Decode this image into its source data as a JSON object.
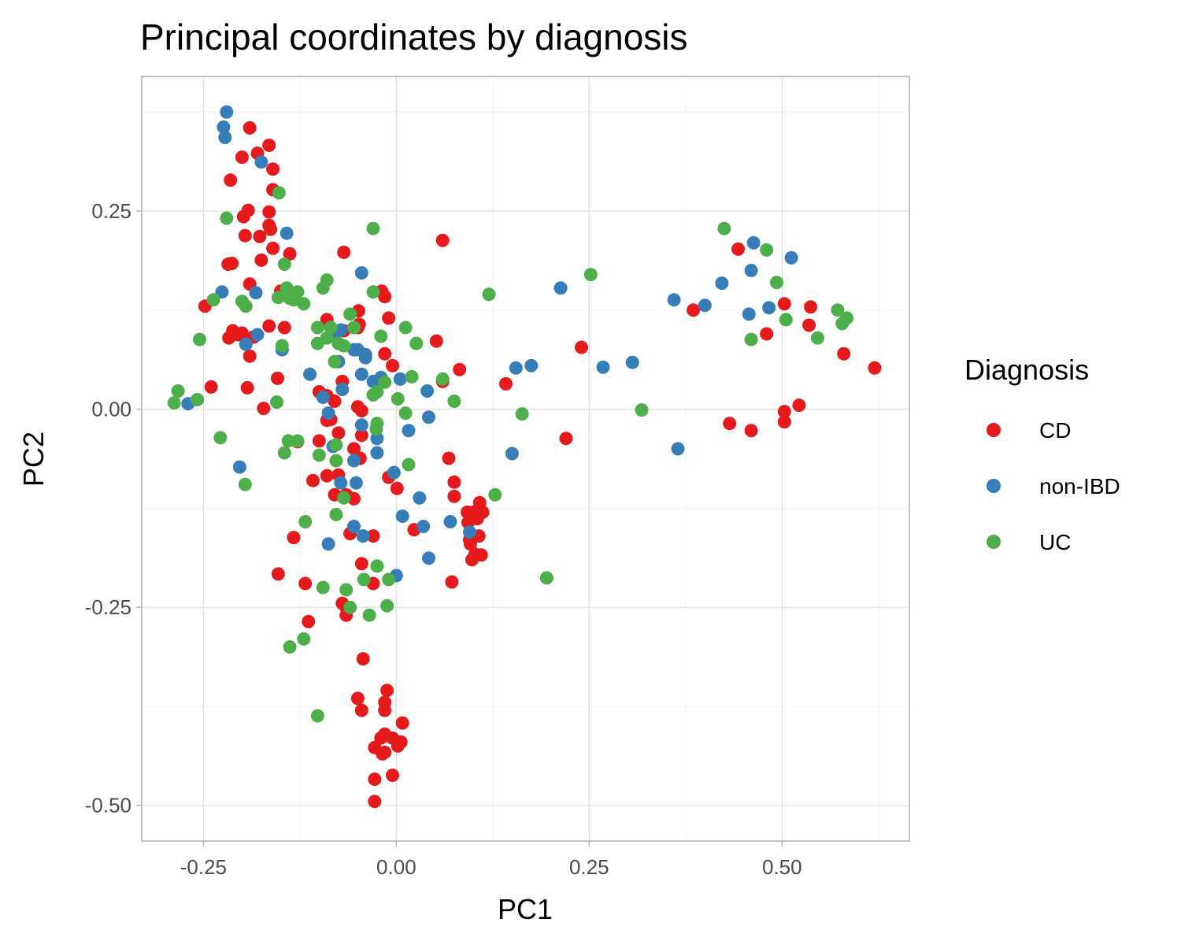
{
  "chart_data": {
    "type": "scatter",
    "title": "Principal coordinates by diagnosis",
    "xlabel": "PC1",
    "ylabel": "PC2",
    "xlim": [
      -0.33,
      0.665
    ],
    "ylim": [
      -0.545,
      0.42
    ],
    "x_ticks": [
      -0.25,
      0.0,
      0.25,
      0.5
    ],
    "x_tick_labels": [
      "-0.25",
      "0.00",
      "0.25",
      "0.50"
    ],
    "y_ticks": [
      0.25,
      0.0,
      -0.25,
      -0.5
    ],
    "y_tick_labels": [
      "0.25",
      "0.00",
      "-0.25",
      "-0.50"
    ],
    "grid": true,
    "legend": {
      "title": "Diagnosis",
      "position": "right"
    },
    "series": [
      {
        "name": "CD",
        "color": "#e41a1c",
        "points": [
          [
            -0.19,
            0.355
          ],
          [
            -0.2,
            0.318
          ],
          [
            -0.18,
            0.323
          ],
          [
            -0.165,
            0.333
          ],
          [
            -0.16,
            0.303
          ],
          [
            -0.215,
            0.289
          ],
          [
            -0.16,
            0.277
          ],
          [
            -0.198,
            0.243
          ],
          [
            -0.192,
            0.251
          ],
          [
            -0.165,
            0.249
          ],
          [
            -0.165,
            0.232
          ],
          [
            -0.163,
            0.227
          ],
          [
            -0.196,
            0.219
          ],
          [
            -0.177,
            0.218
          ],
          [
            -0.16,
            0.203
          ],
          [
            -0.138,
            0.196
          ],
          [
            -0.213,
            0.184
          ],
          [
            -0.218,
            0.183
          ],
          [
            -0.175,
            0.188
          ],
          [
            -0.19,
            0.158
          ],
          [
            -0.15,
            0.149
          ],
          [
            -0.248,
            0.13
          ],
          [
            -0.145,
            0.103
          ],
          [
            -0.165,
            0.105
          ],
          [
            -0.212,
            0.099
          ],
          [
            -0.205,
            0.094
          ],
          [
            -0.2,
            0.096
          ],
          [
            -0.185,
            0.091
          ],
          [
            -0.217,
            0.09
          ],
          [
            -0.19,
            0.067
          ],
          [
            -0.154,
            0.039
          ],
          [
            -0.24,
            0.028
          ],
          [
            -0.193,
            0.027
          ],
          [
            -0.172,
            0.001
          ],
          [
            -0.128,
            -0.041
          ],
          [
            -0.108,
            -0.09
          ],
          [
            -0.133,
            -0.162
          ],
          [
            -0.153,
            -0.208
          ],
          [
            -0.118,
            -0.22
          ],
          [
            -0.114,
            -0.268
          ],
          [
            -0.068,
            0.198
          ],
          [
            -0.049,
            0.124
          ],
          [
            -0.019,
            0.149
          ],
          [
            -0.015,
            0.142
          ],
          [
            -0.05,
            0.103
          ],
          [
            -0.048,
            0.107
          ],
          [
            -0.09,
            0.113
          ],
          [
            -0.068,
            0.099
          ],
          [
            -0.01,
            0.115
          ],
          [
            -0.015,
            0.07
          ],
          [
            -0.005,
            0.055
          ],
          [
            -0.07,
            0.035
          ],
          [
            -0.1,
            0.022
          ],
          [
            -0.09,
            0.017
          ],
          [
            -0.08,
            0.01
          ],
          [
            -0.05,
            0.003
          ],
          [
            -0.045,
            -0.002
          ],
          [
            -0.09,
            -0.014
          ],
          [
            -0.085,
            -0.013
          ],
          [
            -0.075,
            -0.03
          ],
          [
            -0.045,
            -0.033
          ],
          [
            -0.055,
            -0.05
          ],
          [
            -0.1,
            -0.04
          ],
          [
            -0.047,
            -0.062
          ],
          [
            -0.09,
            -0.084
          ],
          [
            -0.075,
            -0.083
          ],
          [
            -0.08,
            -0.108
          ],
          [
            -0.065,
            -0.108
          ],
          [
            -0.055,
            -0.113
          ],
          [
            -0.06,
            -0.157
          ],
          [
            -0.03,
            -0.16
          ],
          [
            -0.01,
            -0.086
          ],
          [
            0.001,
            -0.1
          ],
          [
            0.023,
            -0.152
          ],
          [
            -0.045,
            -0.195
          ],
          [
            -0.03,
            -0.22
          ],
          [
            -0.07,
            -0.245
          ],
          [
            -0.065,
            -0.25
          ],
          [
            -0.065,
            -0.26
          ],
          [
            -0.043,
            -0.315
          ],
          [
            -0.05,
            -0.365
          ],
          [
            -0.045,
            -0.38
          ],
          [
            -0.015,
            -0.37
          ],
          [
            -0.012,
            -0.355
          ],
          [
            -0.015,
            -0.38
          ],
          [
            0.008,
            -0.396
          ],
          [
            -0.015,
            -0.41
          ],
          [
            -0.02,
            -0.415
          ],
          [
            -0.028,
            -0.427
          ],
          [
            -0.015,
            -0.433
          ],
          [
            -0.005,
            -0.415
          ],
          [
            0.002,
            -0.425
          ],
          [
            0.006,
            -0.42
          ],
          [
            -0.018,
            -0.435
          ],
          [
            -0.028,
            -0.467
          ],
          [
            -0.005,
            -0.462
          ],
          [
            -0.028,
            -0.495
          ],
          [
            0.052,
            0.086
          ],
          [
            0.06,
            0.035
          ],
          [
            0.082,
            0.05
          ],
          [
            0.068,
            -0.062
          ],
          [
            0.075,
            -0.092
          ],
          [
            0.075,
            -0.11
          ],
          [
            0.072,
            -0.218
          ],
          [
            0.06,
            0.213
          ],
          [
            0.142,
            0.032
          ],
          [
            0.092,
            -0.13
          ],
          [
            0.1,
            -0.13
          ],
          [
            0.105,
            -0.138
          ],
          [
            0.112,
            -0.13
          ],
          [
            0.108,
            -0.118
          ],
          [
            0.093,
            -0.143
          ],
          [
            0.095,
            -0.165
          ],
          [
            0.107,
            -0.16
          ],
          [
            0.096,
            -0.17
          ],
          [
            0.098,
            -0.19
          ],
          [
            0.102,
            -0.183
          ],
          [
            0.11,
            -0.184
          ],
          [
            0.22,
            -0.037
          ],
          [
            0.24,
            0.078
          ],
          [
            0.385,
            0.125
          ],
          [
            0.443,
            0.202
          ],
          [
            0.48,
            0.095
          ],
          [
            0.432,
            -0.018
          ],
          [
            0.46,
            -0.027
          ],
          [
            0.503,
            0.133
          ],
          [
            0.537,
            0.129
          ],
          [
            0.535,
            0.106
          ],
          [
            0.58,
            0.07
          ],
          [
            0.62,
            0.052
          ],
          [
            0.522,
            0.005
          ],
          [
            0.503,
            -0.003
          ],
          [
            0.503,
            -0.016
          ]
        ]
      },
      {
        "name": "non-IBD",
        "color": "#377eb8",
        "points": [
          [
            -0.22,
            0.375
          ],
          [
            -0.224,
            0.356
          ],
          [
            -0.222,
            0.343
          ],
          [
            -0.175,
            0.312
          ],
          [
            -0.142,
            0.222
          ],
          [
            -0.226,
            0.148
          ],
          [
            -0.182,
            0.147
          ],
          [
            -0.18,
            0.094
          ],
          [
            -0.195,
            0.082
          ],
          [
            -0.148,
            0.075
          ],
          [
            -0.112,
            0.044
          ],
          [
            -0.27,
            0.007
          ],
          [
            -0.203,
            -0.073
          ],
          [
            -0.078,
            0.097
          ],
          [
            -0.072,
            0.1
          ],
          [
            -0.08,
            0.097
          ],
          [
            -0.045,
            0.172
          ],
          [
            -0.055,
            0.075
          ],
          [
            -0.05,
            0.075
          ],
          [
            -0.04,
            0.069
          ],
          [
            -0.04,
            0.065
          ],
          [
            -0.075,
            0.06
          ],
          [
            -0.045,
            0.044
          ],
          [
            -0.02,
            0.04
          ],
          [
            -0.03,
            0.035
          ],
          [
            -0.07,
            0.025
          ],
          [
            -0.095,
            0.015
          ],
          [
            -0.088,
            -0.005
          ],
          [
            -0.045,
            -0.02
          ],
          [
            -0.025,
            -0.037
          ],
          [
            -0.082,
            -0.047
          ],
          [
            -0.025,
            -0.055
          ],
          [
            -0.055,
            -0.065
          ],
          [
            -0.072,
            -0.093
          ],
          [
            -0.052,
            -0.093
          ],
          [
            -0.088,
            -0.17
          ],
          [
            -0.055,
            -0.148
          ],
          [
            -0.043,
            -0.16
          ],
          [
            -0.003,
            -0.08
          ],
          [
            0.005,
            0.038
          ],
          [
            0.04,
            0.023
          ],
          [
            0.042,
            -0.01
          ],
          [
            0.016,
            -0.027
          ],
          [
            0.03,
            -0.112
          ],
          [
            0.008,
            -0.135
          ],
          [
            0.035,
            -0.148
          ],
          [
            0.042,
            -0.188
          ],
          [
            0.0,
            -0.21
          ],
          [
            0.07,
            -0.142
          ],
          [
            0.095,
            -0.155
          ],
          [
            0.155,
            0.052
          ],
          [
            0.175,
            0.055
          ],
          [
            0.15,
            -0.056
          ],
          [
            0.213,
            0.153
          ],
          [
            0.268,
            0.053
          ],
          [
            0.306,
            0.059
          ],
          [
            0.36,
            0.138
          ],
          [
            0.365,
            -0.05
          ],
          [
            0.4,
            0.131
          ],
          [
            0.422,
            0.159
          ],
          [
            0.46,
            0.175
          ],
          [
            0.463,
            0.21
          ],
          [
            0.457,
            0.12
          ],
          [
            0.483,
            0.128
          ],
          [
            0.512,
            0.191
          ]
        ]
      },
      {
        "name": "UC",
        "color": "#4daf4a",
        "points": [
          [
            -0.288,
            0.008
          ],
          [
            -0.283,
            0.023
          ],
          [
            -0.258,
            0.012
          ],
          [
            -0.255,
            0.088
          ],
          [
            -0.237,
            0.138
          ],
          [
            -0.228,
            -0.036
          ],
          [
            -0.22,
            0.241
          ],
          [
            -0.2,
            0.136
          ],
          [
            -0.195,
            0.13
          ],
          [
            -0.196,
            -0.095
          ],
          [
            -0.152,
            0.273
          ],
          [
            -0.145,
            0.183
          ],
          [
            -0.153,
            0.141
          ],
          [
            -0.142,
            0.153
          ],
          [
            -0.138,
            0.14
          ],
          [
            -0.133,
            0.138
          ],
          [
            -0.128,
            0.148
          ],
          [
            -0.12,
            0.133
          ],
          [
            -0.148,
            0.08
          ],
          [
            -0.145,
            -0.055
          ],
          [
            -0.155,
            0.009
          ],
          [
            -0.14,
            -0.04
          ],
          [
            -0.128,
            -0.04
          ],
          [
            -0.118,
            -0.142
          ],
          [
            -0.12,
            -0.29
          ],
          [
            -0.138,
            -0.3
          ],
          [
            -0.102,
            -0.387
          ],
          [
            -0.095,
            0.153
          ],
          [
            -0.09,
            0.163
          ],
          [
            -0.102,
            0.103
          ],
          [
            -0.085,
            0.103
          ],
          [
            -0.102,
            0.083
          ],
          [
            -0.09,
            0.09
          ],
          [
            -0.075,
            0.083
          ],
          [
            -0.068,
            0.08
          ],
          [
            -0.08,
            0.06
          ],
          [
            -0.078,
            -0.045
          ],
          [
            -0.1,
            -0.058
          ],
          [
            -0.078,
            -0.065
          ],
          [
            -0.068,
            -0.112
          ],
          [
            -0.078,
            -0.133
          ],
          [
            -0.095,
            -0.225
          ],
          [
            -0.065,
            -0.228
          ],
          [
            -0.042,
            -0.215
          ],
          [
            -0.06,
            -0.25
          ],
          [
            -0.035,
            -0.26
          ],
          [
            -0.025,
            -0.198
          ],
          [
            -0.012,
            -0.248
          ],
          [
            -0.03,
            0.228
          ],
          [
            -0.03,
            0.148
          ],
          [
            -0.06,
            0.12
          ],
          [
            -0.055,
            0.103
          ],
          [
            -0.02,
            0.092
          ],
          [
            -0.015,
            0.034
          ],
          [
            -0.03,
            0.018
          ],
          [
            -0.025,
            0.022
          ],
          [
            -0.025,
            -0.018
          ],
          [
            -0.026,
            -0.025
          ],
          [
            0.012,
            0.103
          ],
          [
            0.026,
            0.083
          ],
          [
            0.02,
            0.041
          ],
          [
            0.002,
            0.013
          ],
          [
            0.012,
            -0.005
          ],
          [
            0.016,
            -0.07
          ],
          [
            -0.01,
            -0.215
          ],
          [
            0.06,
            0.038
          ],
          [
            0.075,
            0.01
          ],
          [
            0.12,
            0.145
          ],
          [
            0.128,
            -0.108
          ],
          [
            0.163,
            -0.006
          ],
          [
            0.195,
            -0.213
          ],
          [
            0.252,
            0.17
          ],
          [
            0.318,
            -0.001
          ],
          [
            0.425,
            0.228
          ],
          [
            0.46,
            0.088
          ],
          [
            0.48,
            0.201
          ],
          [
            0.493,
            0.16
          ],
          [
            0.505,
            0.113
          ],
          [
            0.546,
            0.09
          ],
          [
            0.572,
            0.125
          ],
          [
            0.578,
            0.108
          ],
          [
            0.584,
            0.115
          ]
        ]
      }
    ]
  }
}
